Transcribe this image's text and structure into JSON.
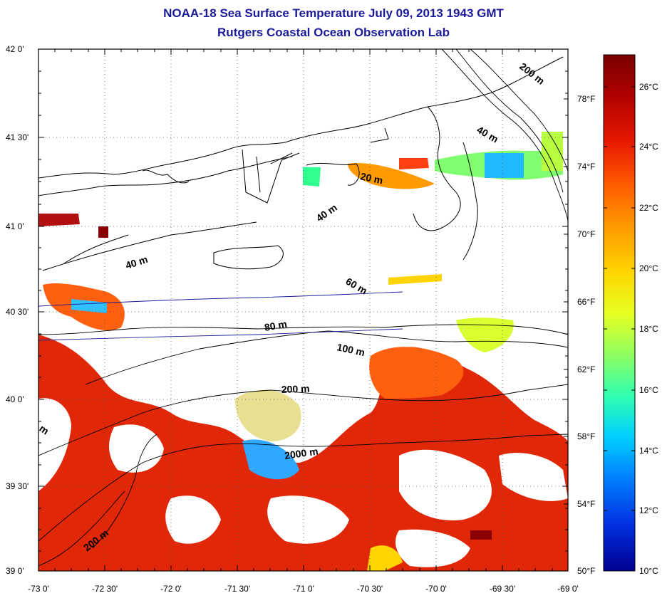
{
  "header": {
    "title": "NOAA-18 Sea Surface Temperature July 09, 2013 1943 GMT",
    "subtitle": "Rutgers Coastal Ocean Observation Lab"
  },
  "axes": {
    "lat_ticks": [
      "42 0'",
      "41 30'",
      "41 0'",
      "40 30'",
      "40 0'",
      "39 30'",
      "39 0'"
    ],
    "lon_ticks": [
      "-73 0'",
      "-72 30'",
      "-72 0'",
      "-71 30'",
      "-71 0'",
      "-70 30'",
      "-70 0'",
      "-69 30'",
      "-69 0'"
    ]
  },
  "isobaths": [
    "200 m",
    "40 m",
    "20 m",
    "40 m",
    "40 m",
    "60 m",
    "80 m",
    "100 m",
    "200 m",
    "2000 m",
    "m",
    "200 m"
  ],
  "colorbar": {
    "celsius": [
      "26°C",
      "24°C",
      "22°C",
      "20°C",
      "18°C",
      "16°C",
      "14°C",
      "12°C",
      "10°C"
    ],
    "fahrenheit": [
      "78°F",
      "74°F",
      "70°F",
      "66°F",
      "62°F",
      "58°F",
      "54°F",
      "50°F"
    ],
    "colors": [
      "#7a0000",
      "#b00000",
      "#e81a00",
      "#ff5a00",
      "#ff9800",
      "#ffd400",
      "#e8ff20",
      "#90ff60",
      "#30ffb0",
      "#00d0ff",
      "#0080ff",
      "#0030e0",
      "#000090"
    ]
  },
  "palette": {
    "title_color": "#1a1a9a",
    "sst_red": "#e02808",
    "sst_orange": "#ff6010",
    "sst_dark": "#a80808"
  }
}
